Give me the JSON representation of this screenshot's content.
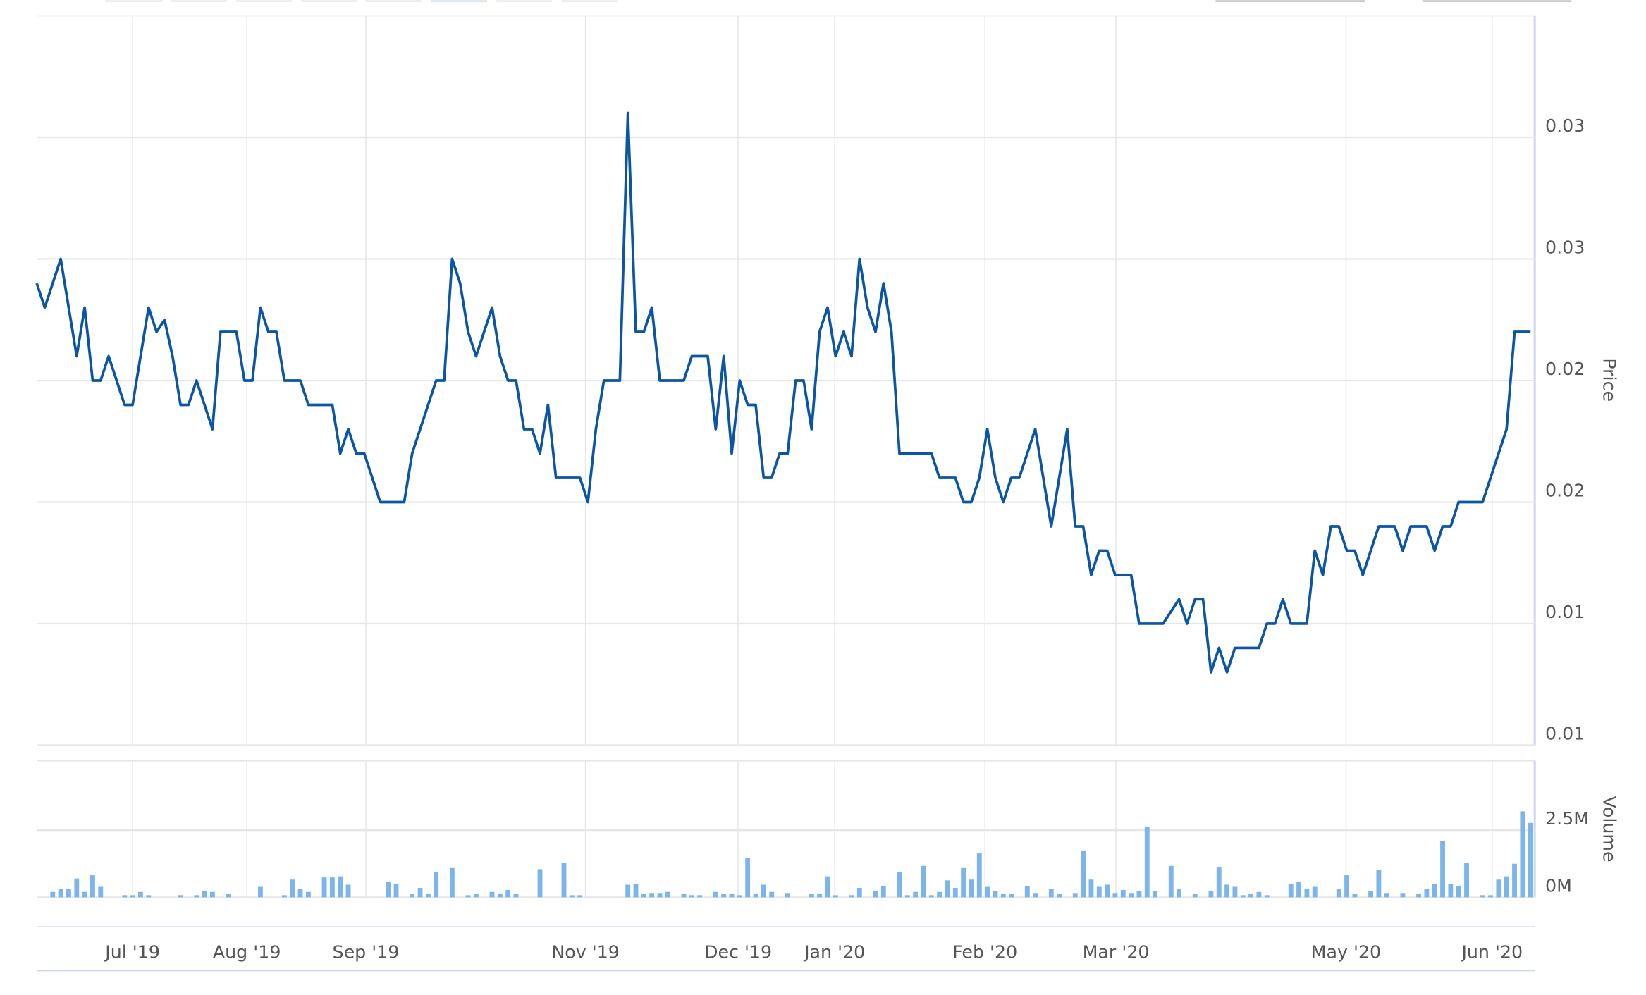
{
  "chart_data": [
    {
      "type": "line",
      "y_label": "Price",
      "color": "#0b56a4",
      "x": [
        0,
        1,
        3,
        5,
        6,
        7,
        8,
        9,
        11,
        12,
        14,
        15,
        16,
        17,
        18,
        19,
        20,
        22,
        23,
        25,
        26,
        27,
        28,
        29,
        30,
        31,
        33,
        34,
        37,
        38,
        39,
        40,
        41,
        43,
        46,
        47,
        50,
        51,
        52,
        53,
        54,
        55,
        57,
        58,
        59,
        60,
        61,
        62,
        63,
        64,
        65,
        68,
        69,
        70,
        71,
        73,
        74,
        75,
        76,
        77,
        78,
        81,
        82,
        84,
        85,
        86,
        87,
        88,
        89,
        90,
        91,
        92,
        93,
        94,
        95,
        96,
        97,
        98,
        99,
        100,
        101,
        102,
        103,
        104,
        105,
        106,
        107,
        108,
        112,
        113,
        115,
        116,
        117,
        118,
        119,
        120,
        121,
        122,
        123,
        125,
        127,
        129,
        130,
        131,
        132,
        133,
        134,
        135,
        137,
        138,
        141,
        143,
        144,
        145,
        146,
        147,
        148,
        149,
        150,
        153,
        154,
        155,
        156,
        157,
        159,
        160,
        161,
        162,
        163,
        164,
        165,
        166,
        168,
        170,
        171,
        172,
        174,
        175,
        176,
        177,
        178,
        181,
        184,
        185,
        187
      ],
      "values": [
        0.024,
        0.023,
        0.025,
        0.021,
        0.023,
        0.02,
        0.02,
        0.021,
        0.019,
        0.019,
        0.023,
        0.022,
        0.0225,
        0.021,
        0.019,
        0.019,
        0.02,
        0.018,
        0.022,
        0.022,
        0.02,
        0.02,
        0.023,
        0.022,
        0.022,
        0.02,
        0.02,
        0.019,
        0.019,
        0.017,
        0.018,
        0.017,
        0.017,
        0.015,
        0.015,
        0.017,
        0.02,
        0.02,
        0.025,
        0.024,
        0.022,
        0.021,
        0.023,
        0.021,
        0.02,
        0.02,
        0.018,
        0.018,
        0.017,
        0.019,
        0.016,
        0.016,
        0.015,
        0.018,
        0.02,
        0.02,
        0.031,
        0.022,
        0.022,
        0.023,
        0.02,
        0.02,
        0.021,
        0.021,
        0.018,
        0.021,
        0.017,
        0.02,
        0.019,
        0.019,
        0.016,
        0.016,
        0.017,
        0.017,
        0.02,
        0.02,
        0.018,
        0.022,
        0.023,
        0.021,
        0.022,
        0.021,
        0.025,
        0.023,
        0.022,
        0.024,
        0.022,
        0.017,
        0.017,
        0.016,
        0.016,
        0.015,
        0.015,
        0.016,
        0.018,
        0.016,
        0.015,
        0.016,
        0.016,
        0.018,
        0.014,
        0.018,
        0.014,
        0.014,
        0.012,
        0.013,
        0.013,
        0.012,
        0.012,
        0.01,
        0.01,
        0.011,
        0.01,
        0.011,
        0.011,
        0.008,
        0.009,
        0.008,
        0.009,
        0.009,
        0.01,
        0.01,
        0.011,
        0.01,
        0.01,
        0.013,
        0.012,
        0.014,
        0.014,
        0.013,
        0.013,
        0.012,
        0.014,
        0.014,
        0.013,
        0.014,
        0.014,
        0.013,
        0.014,
        0.014,
        0.015,
        0.015,
        0.018,
        0.022,
        0.022
      ],
      "xlim": [
        0,
        187
      ],
      "ylim": [
        0.005,
        0.035
      ],
      "yticks": [
        {
          "value": 0.005,
          "label": "0.01"
        },
        {
          "value": 0.01,
          "label": "0.01"
        },
        {
          "value": 0.015,
          "label": "0.02"
        },
        {
          "value": 0.02,
          "label": "0.02"
        },
        {
          "value": 0.025,
          "label": "0.03"
        },
        {
          "value": 0.03,
          "label": "0.03"
        }
      ],
      "grid": true
    },
    {
      "type": "bar",
      "y_label": "Volume",
      "color": "#7cb5ec",
      "x": [
        2,
        3,
        4,
        5,
        6,
        7,
        8,
        11,
        12,
        13,
        14,
        18,
        20,
        21,
        22,
        24,
        28,
        31,
        32,
        33,
        34,
        36,
        37,
        38,
        39,
        44,
        45,
        47,
        48,
        49,
        50,
        52,
        54,
        55,
        57,
        58,
        59,
        60,
        63,
        66,
        67,
        68,
        74,
        75,
        76,
        77,
        78,
        79,
        81,
        82,
        83,
        85,
        86,
        87,
        88,
        89,
        90,
        91,
        92,
        94,
        97,
        98,
        99,
        100,
        102,
        103,
        105,
        106,
        108,
        109,
        110,
        111,
        112,
        113,
        114,
        115,
        116,
        117,
        118,
        119,
        120,
        121,
        122,
        124,
        125,
        127,
        128,
        130,
        131,
        132,
        133,
        134,
        135,
        136,
        137,
        138,
        139,
        140,
        142,
        143,
        145,
        147,
        148,
        149,
        150,
        151,
        152,
        153,
        154,
        157,
        158,
        159,
        160,
        163,
        164,
        165,
        167,
        168,
        169,
        171,
        173,
        174,
        175,
        176,
        177,
        178,
        179,
        181,
        182,
        183,
        184,
        185,
        186,
        187
      ],
      "values": [
        200000,
        310000,
        310000,
        700000,
        200000,
        820000,
        390000,
        80000,
        80000,
        200000,
        80000,
        80000,
        80000,
        230000,
        200000,
        120000,
        390000,
        80000,
        660000,
        310000,
        200000,
        740000,
        740000,
        780000,
        470000,
        590000,
        510000,
        120000,
        350000,
        120000,
        940000,
        1090000,
        80000,
        120000,
        200000,
        120000,
        270000,
        120000,
        1050000,
        1290000,
        80000,
        80000,
        470000,
        510000,
        120000,
        160000,
        160000,
        200000,
        120000,
        80000,
        80000,
        200000,
        120000,
        120000,
        80000,
        1480000,
        120000,
        470000,
        200000,
        160000,
        120000,
        120000,
        780000,
        80000,
        80000,
        350000,
        230000,
        430000,
        940000,
        80000,
        200000,
        1170000,
        80000,
        200000,
        630000,
        350000,
        1090000,
        660000,
        1640000,
        390000,
        230000,
        120000,
        120000,
        430000,
        160000,
        310000,
        120000,
        160000,
        1720000,
        660000,
        390000,
        470000,
        160000,
        270000,
        160000,
        230000,
        2620000,
        230000,
        1170000,
        310000,
        120000,
        230000,
        1130000,
        470000,
        390000,
        80000,
        120000,
        200000,
        80000,
        510000,
        590000,
        310000,
        390000,
        310000,
        820000,
        120000,
        230000,
        1020000,
        160000,
        160000,
        120000,
        310000,
        510000,
        2110000,
        510000,
        430000,
        1290000,
        80000,
        80000,
        660000,
        780000,
        1250000,
        3200000,
        2770000
      ],
      "xlim": [
        0,
        187
      ],
      "ylim": [
        0,
        5080000
      ],
      "yticks": [
        {
          "value": 0,
          "label": "0M"
        },
        {
          "value": 2500000,
          "label": "2.5M"
        }
      ],
      "xticks": [
        {
          "value": 12,
          "label": "Jul '19"
        },
        {
          "value": 26.3,
          "label": "Aug '19"
        },
        {
          "value": 41.2,
          "label": "Sep '19"
        },
        {
          "value": 68.7,
          "label": "Nov '19"
        },
        {
          "value": 87.8,
          "label": "Dec '19"
        },
        {
          "value": 99.9,
          "label": "Jan '20"
        },
        {
          "value": 118.7,
          "label": "Feb '20"
        },
        {
          "value": 135.1,
          "label": "Mar '20"
        },
        {
          "value": 163.9,
          "label": "May '20"
        },
        {
          "value": 182.2,
          "label": "Jun '20"
        }
      ],
      "grid": true
    }
  ]
}
